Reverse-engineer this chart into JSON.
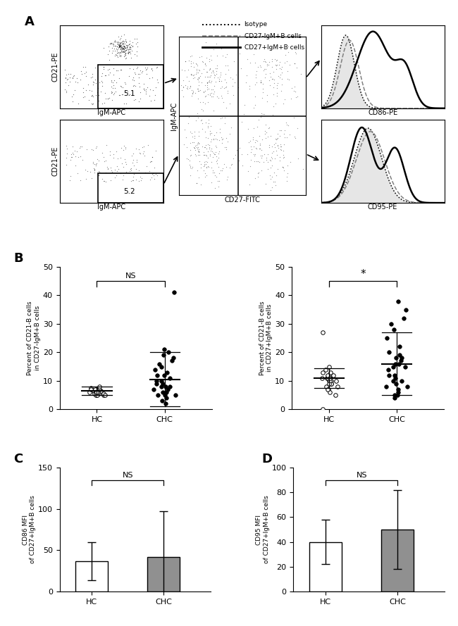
{
  "panel_A_label": "A",
  "panel_B_label": "B",
  "panel_C_label": "C",
  "panel_D_label": "D",
  "scatter_B_left": {
    "HC_values": [
      5.0,
      6.0,
      7.0,
      5.5,
      6.5,
      7.0,
      5.0,
      6.0,
      6.5,
      7.0,
      5.5,
      6.0,
      7.0,
      5.0,
      6.5,
      7.5,
      8.0,
      5.0,
      6.0,
      7.0,
      5.5,
      6.5,
      7.0,
      5.0,
      6.0
    ],
    "CHC_values": [
      5.0,
      6.0,
      7.0,
      8.0,
      9.0,
      10.0,
      11.0,
      12.0,
      13.0,
      14.0,
      15.0,
      16.0,
      17.0,
      18.0,
      19.0,
      20.0,
      21.0,
      7.0,
      8.0,
      9.0,
      10.0,
      6.0,
      5.0,
      4.0,
      3.0,
      41.0,
      2.0,
      5.0,
      8.0,
      12.0
    ],
    "HC_mean": 6.5,
    "HC_sd": 1.5,
    "CHC_mean": 10.5,
    "CHC_sd": 9.5,
    "ylabel": "Percent of CD21-B cells\nin CD27-IgM+B cells",
    "ylim": [
      0,
      50
    ],
    "sig": "NS"
  },
  "scatter_B_right": {
    "HC_values": [
      10.0,
      11.0,
      12.0,
      13.0,
      14.0,
      15.0,
      10.0,
      11.0,
      12.0,
      9.0,
      8.0,
      7.0,
      10.0,
      11.0,
      12.0,
      13.0,
      9.0,
      10.0,
      11.0,
      27.0,
      5.0,
      6.0,
      7.0,
      8.0,
      9.0,
      0.0
    ],
    "CHC_values": [
      5.0,
      8.0,
      10.0,
      12.0,
      15.0,
      18.0,
      20.0,
      22.0,
      25.0,
      28.0,
      30.0,
      32.0,
      15.0,
      16.0,
      17.0,
      18.0,
      19.0,
      10.0,
      12.0,
      14.0,
      16.0,
      8.0,
      6.0,
      4.0,
      35.0,
      38.0,
      5.0,
      7.0,
      9.0,
      11.0
    ],
    "HC_mean": 11.0,
    "HC_sd": 3.5,
    "CHC_mean": 16.0,
    "CHC_sd": 11.0,
    "ylabel": "Percent of CD21-B cells\nin CD27+IgM+B cells",
    "ylim": [
      0,
      50
    ],
    "sig": "*"
  },
  "bar_C": {
    "HC_mean": 37,
    "HC_sd": 23,
    "CHC_mean": 42,
    "CHC_sd": 55,
    "ylabel": "CD86 MFI\nof CD27+IgM+B cells",
    "ylim": [
      0,
      150
    ],
    "yticks": [
      0,
      50,
      100,
      150
    ],
    "sig": "NS"
  },
  "bar_D": {
    "HC_mean": 40,
    "HC_sd": 18,
    "CHC_mean": 50,
    "CHC_sd": 32,
    "ylabel": "CD95 MFI\nof CD27+IgM+B cells",
    "ylim": [
      0,
      100
    ],
    "yticks": [
      0,
      20,
      40,
      60,
      80,
      100
    ],
    "sig": "NS"
  },
  "bar_color_HC": "#ffffff",
  "bar_color_CHC": "#909090",
  "bar_edgecolor": "#000000",
  "dot_color_HC": "#ffffff",
  "dot_color_CHC": "#000000",
  "background_color": "#ffffff",
  "fontsize_tick": 8,
  "fontsize_panel": 13,
  "fontsize_axis": 7
}
